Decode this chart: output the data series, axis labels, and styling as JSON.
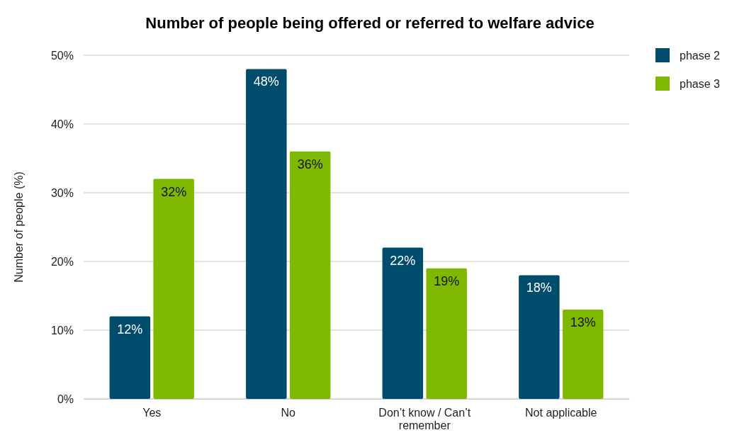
{
  "chart_data": {
    "type": "bar",
    "title": "Number of people being offered or referred to welfare advice",
    "ylabel": "Number of people (%)",
    "categories": [
      "Yes",
      "No",
      "Don’t know / Can’t remember",
      "Not applicable"
    ],
    "series": [
      {
        "name": "phase 2",
        "color": "#004c6d",
        "values": [
          12,
          48,
          22,
          18
        ],
        "value_labels": [
          "12%",
          "48%",
          "22%",
          "18%"
        ]
      },
      {
        "name": "phase 3",
        "color": "#7fb800",
        "values": [
          32,
          36,
          19,
          13
        ],
        "value_labels": [
          "32%",
          "36%",
          "19%",
          "13%"
        ]
      }
    ],
    "ylim": [
      0,
      50
    ],
    "yticks": [
      {
        "value": 0,
        "label": "0%"
      },
      {
        "value": 10,
        "label": "10%"
      },
      {
        "value": 20,
        "label": "20%"
      },
      {
        "value": 30,
        "label": "30%"
      },
      {
        "value": 40,
        "label": "40%"
      },
      {
        "value": 50,
        "label": "50%"
      }
    ],
    "grid": "y",
    "legend": "top right"
  }
}
